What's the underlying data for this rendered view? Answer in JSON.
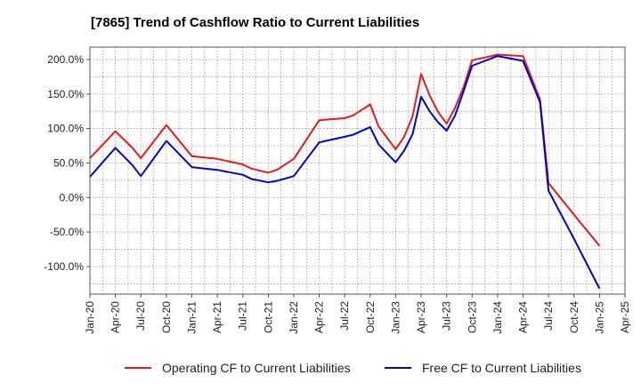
{
  "chart_data": {
    "type": "line",
    "title": "[7865]  Trend of Cashflow Ratio to Current Liabilities",
    "xlabel": "",
    "ylabel": "",
    "x_ticks": [
      "Jan-20",
      "Apr-20",
      "Jul-20",
      "Oct-20",
      "Jan-21",
      "Apr-21",
      "Jul-21",
      "Oct-21",
      "Jan-22",
      "Apr-22",
      "Jul-22",
      "Oct-22",
      "Jan-23",
      "Apr-23",
      "Jul-23",
      "Oct-23",
      "Jan-24",
      "Apr-24",
      "Jul-24",
      "Oct-24",
      "Jan-25",
      "Apr-25"
    ],
    "y_ticks": [
      200,
      150,
      100,
      50,
      0,
      -50,
      -100
    ],
    "y_tick_labels": [
      "200.0%",
      "150.0%",
      "100.0%",
      "50.0%",
      "0.0%",
      "-50.0%",
      "-100.0%"
    ],
    "ylim": [
      -140,
      218
    ],
    "grid": true,
    "legend_position": "bottom",
    "series": [
      {
        "name": "Operating CF to Current Liabilities",
        "color": "#e41a1c",
        "x": [
          "Jan-20",
          "Apr-20",
          "Jun-20",
          "Jul-20",
          "Oct-20",
          "Jan-21",
          "Apr-21",
          "Jul-21",
          "Aug-21",
          "Oct-21",
          "Nov-21",
          "Jan-22",
          "Apr-22",
          "Jul-22",
          "Aug-22",
          "Oct-22",
          "Nov-22",
          "Jan-23",
          "Feb-23",
          "Mar-23",
          "Apr-23",
          "May-23",
          "Jun-23",
          "Jul-23",
          "Aug-23",
          "Sep-23",
          "Oct-23",
          "Jan-24",
          "Apr-24",
          "Jun-24",
          "Jul-24",
          "Oct-24",
          "Jan-25"
        ],
        "values": [
          57,
          96,
          72,
          57,
          105,
          60,
          56,
          48,
          42,
          36,
          40,
          56,
          112,
          115,
          119,
          135,
          103,
          70,
          88,
          118,
          179,
          148,
          124,
          107,
          130,
          160,
          199,
          207,
          205,
          142,
          21,
          -25,
          -70
        ]
      },
      {
        "name": "Free CF to Current Liabilities",
        "color": "#0000cc",
        "x": [
          "Jan-20",
          "Apr-20",
          "Jun-20",
          "Jul-20",
          "Oct-20",
          "Jan-21",
          "Apr-21",
          "Jul-21",
          "Aug-21",
          "Oct-21",
          "Nov-21",
          "Jan-22",
          "Apr-22",
          "Jul-22",
          "Aug-22",
          "Oct-22",
          "Nov-22",
          "Jan-23",
          "Feb-23",
          "Mar-23",
          "Apr-23",
          "May-23",
          "Jun-23",
          "Jul-23",
          "Aug-23",
          "Sep-23",
          "Oct-23",
          "Jan-24",
          "Apr-24",
          "Jun-24",
          "Jul-24",
          "Oct-24",
          "Jan-25"
        ],
        "values": [
          30,
          72,
          47,
          31,
          82,
          44,
          40,
          33,
          27,
          22,
          24,
          31,
          80,
          88,
          91,
          102,
          77,
          51,
          68,
          92,
          146,
          125,
          109,
          97,
          119,
          154,
          191,
          205,
          198,
          138,
          10,
          -60,
          -132
        ]
      }
    ]
  }
}
